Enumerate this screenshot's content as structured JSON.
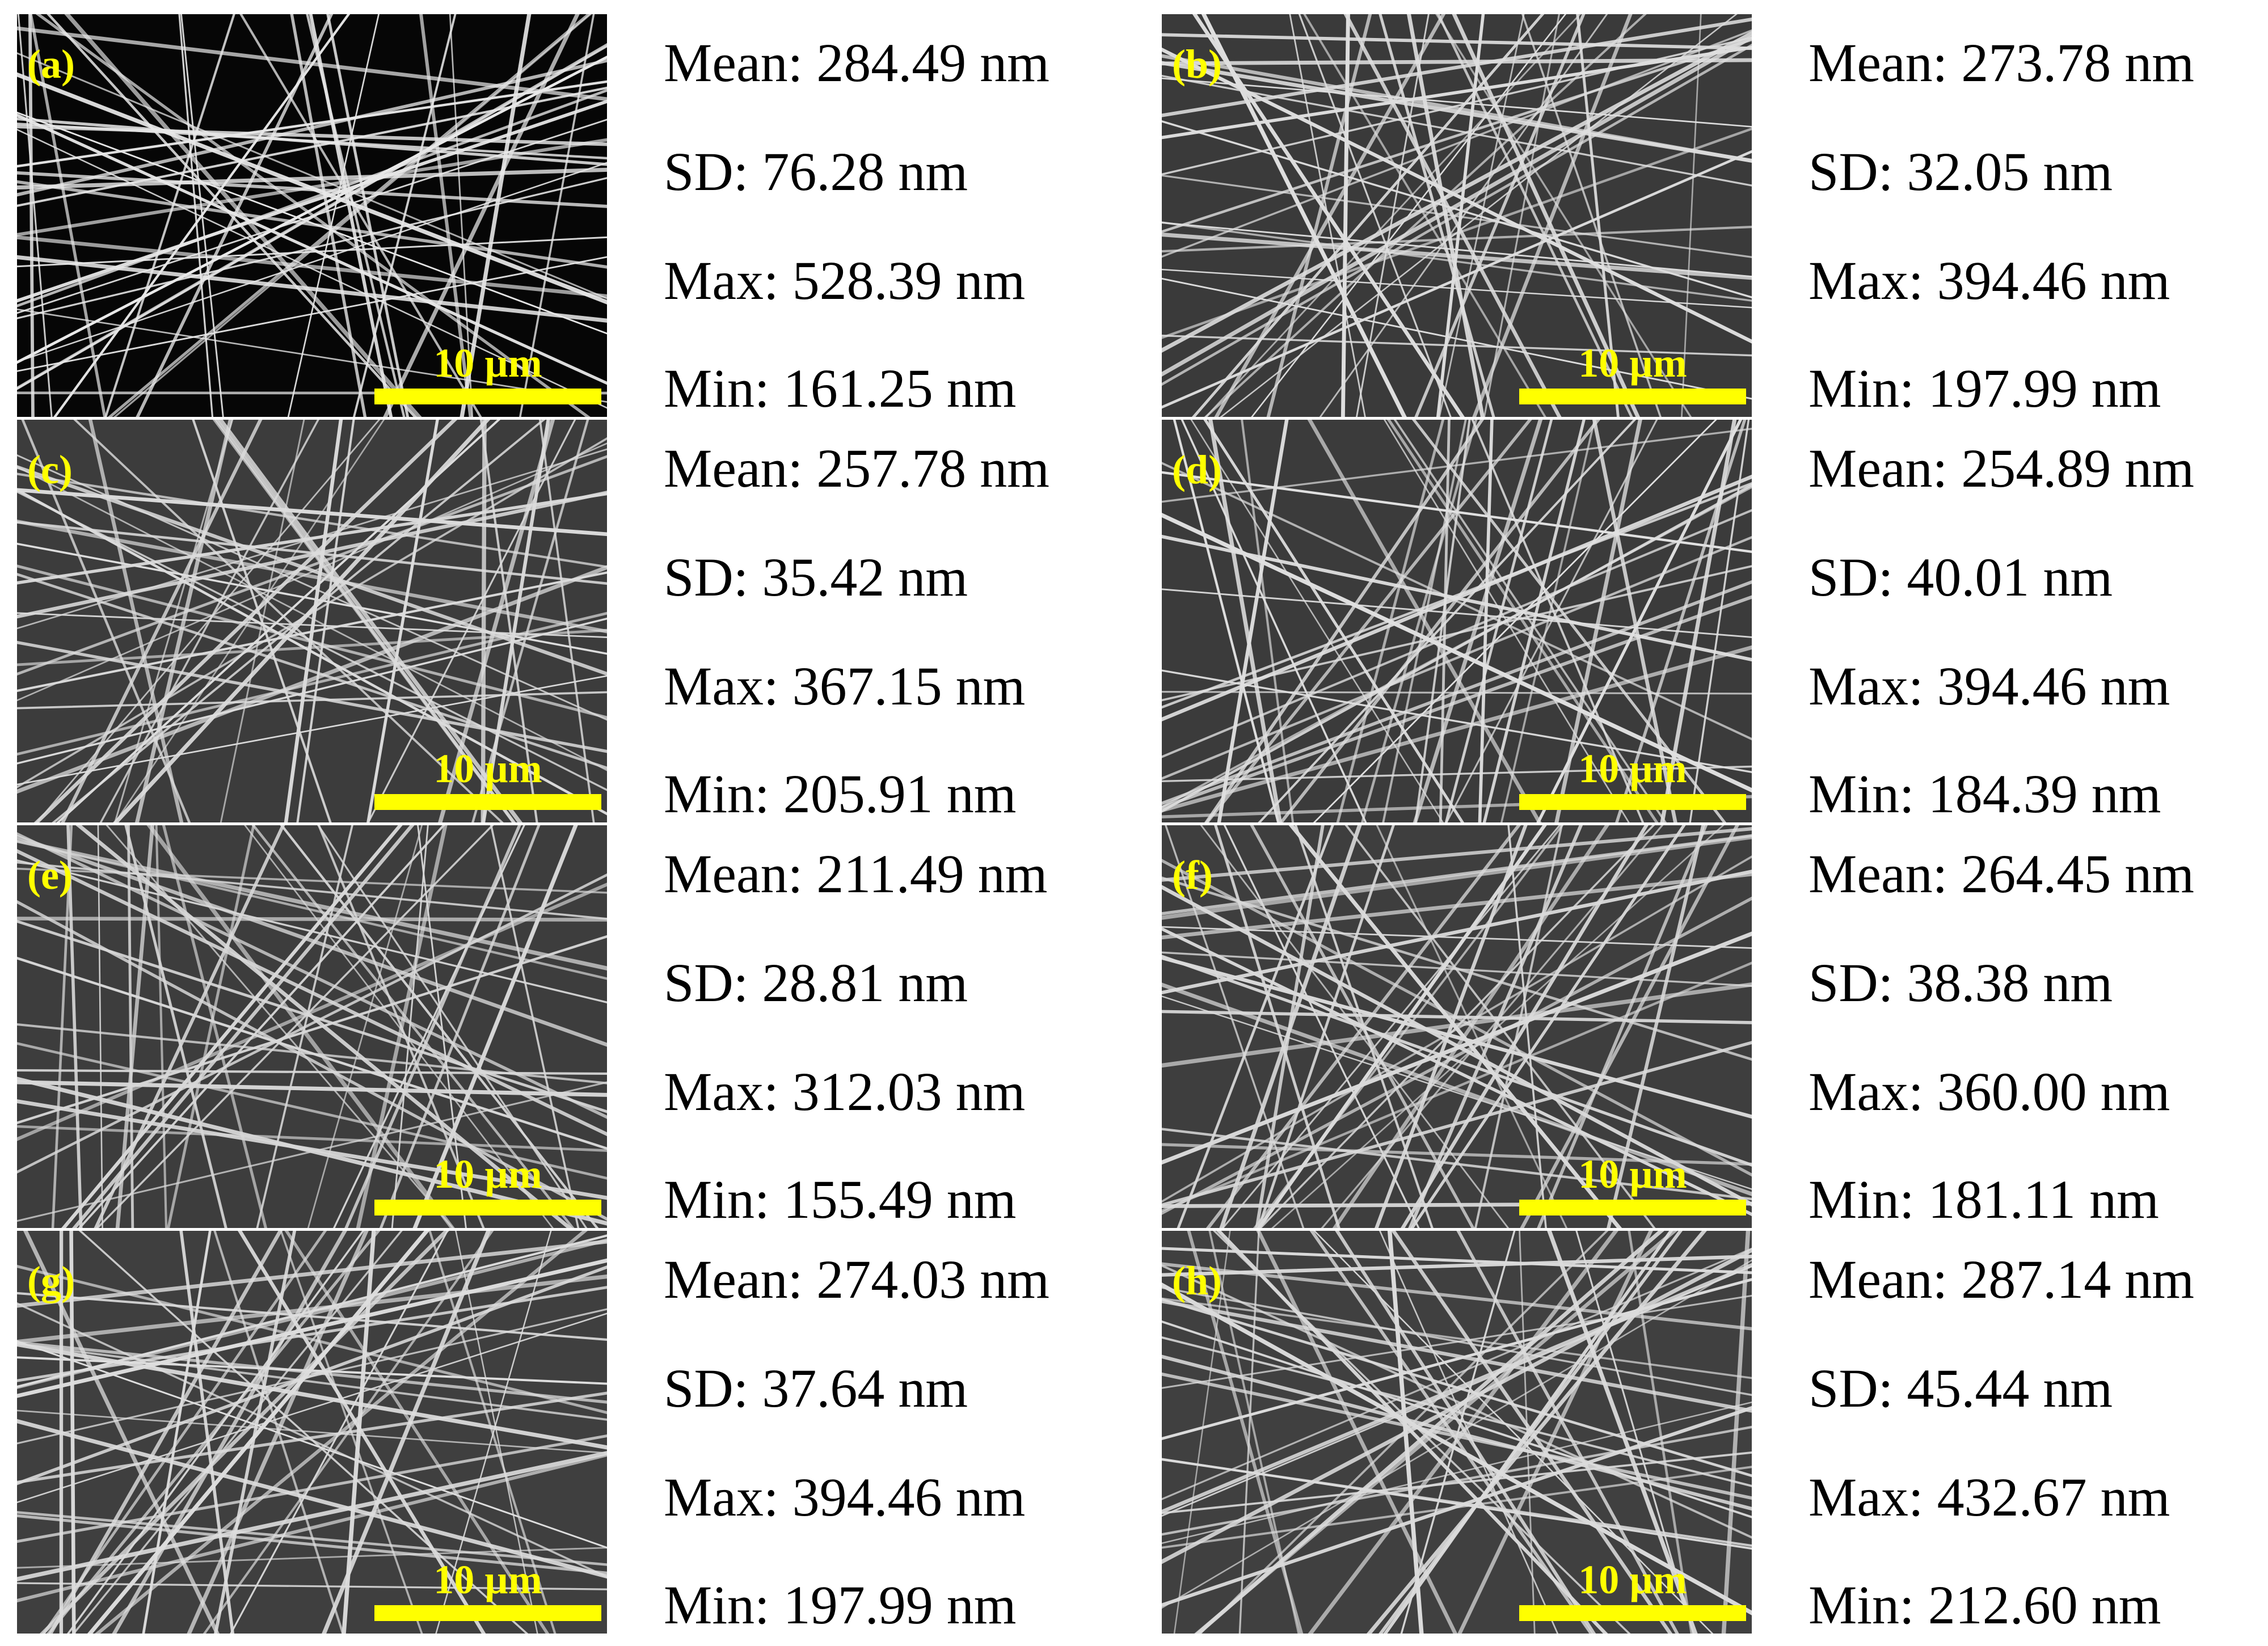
{
  "scale_bar_label": "10 µm",
  "accent_color": "#ffff00",
  "panels": [
    {
      "label": "(a)",
      "background": "#060606",
      "fiber_color": "#e8e8e8",
      "seed": 11,
      "stats": {
        "mean": "Mean: 284.49 nm",
        "sd": "SD: 76.28 nm",
        "max": "Max: 528.39 nm",
        "min": "Min: 161.25 nm"
      }
    },
    {
      "label": "(b)",
      "background": "#3a3a3a",
      "fiber_color": "#dedede",
      "seed": 23,
      "stats": {
        "mean": "Mean: 273.78 nm",
        "sd": "SD: 32.05 nm",
        "max": "Max: 394.46 nm",
        "min": "Min: 197.99 nm"
      }
    },
    {
      "label": "(c)",
      "background": "#3c3c3c",
      "fiber_color": "#dcdcdc",
      "seed": 37,
      "stats": {
        "mean": "Mean: 257.78 nm",
        "sd": "SD: 35.42 nm",
        "max": "Max: 367.15 nm",
        "min": "Min: 205.91 nm"
      }
    },
    {
      "label": "(d)",
      "background": "#3b3b3b",
      "fiber_color": "#e0e0e0",
      "seed": 41,
      "stats": {
        "mean": "Mean: 254.89 nm",
        "sd": "SD: 40.01 nm",
        "max": "Max: 394.46 nm",
        "min": "Min: 184.39 nm"
      }
    },
    {
      "label": "(e)",
      "background": "#3d3d3d",
      "fiber_color": "#d8d8d8",
      "seed": 53,
      "stats": {
        "mean": "Mean: 211.49 nm",
        "sd": "SD: 28.81 nm",
        "max": "Max: 312.03 nm",
        "min": "Min: 155.49 nm"
      }
    },
    {
      "label": "(f)",
      "background": "#3e3e3e",
      "fiber_color": "#dadada",
      "seed": 67,
      "stats": {
        "mean": "Mean: 264.45 nm",
        "sd": "SD: 38.38 nm",
        "max": "Max: 360.00 nm",
        "min": "Min: 181.11 nm"
      }
    },
    {
      "label": "(g)",
      "background": "#3f3f3f",
      "fiber_color": "#dddddd",
      "seed": 79,
      "stats": {
        "mean": "Mean: 274.03 nm",
        "sd": "SD: 37.64 nm",
        "max": "Max: 394.46 nm",
        "min": "Min: 197.99 nm"
      }
    },
    {
      "label": "(h)",
      "background": "#404040",
      "fiber_color": "#dbdbdb",
      "seed": 97,
      "stats": {
        "mean": "Mean: 287.14 nm",
        "sd": "SD: 45.44 nm",
        "max": "Max: 432.67 nm",
        "min": "Min: 212.60 nm"
      }
    }
  ]
}
